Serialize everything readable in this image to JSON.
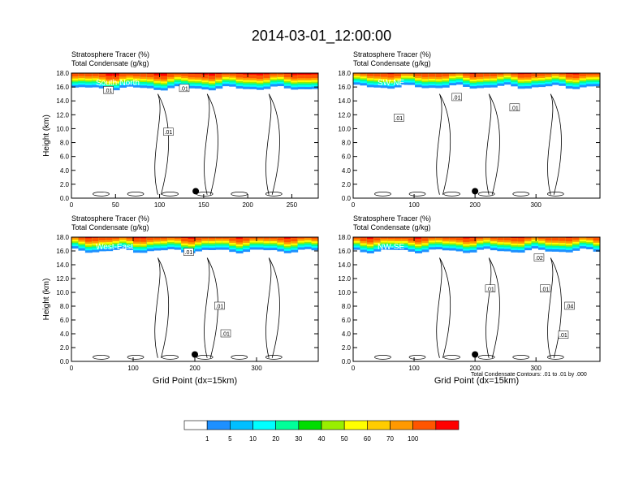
{
  "title": "2014-03-01_12:00:00",
  "panel_subtitle_1": "Stratosphere Tracer   (%)",
  "panel_subtitle_2": "Total Condensate   (g/kg)",
  "contour_note": "Total Condensate Contours: .01 to .01 by .000",
  "colorbar": {
    "colors": [
      "#ffffff",
      "#1e90ff",
      "#00bfff",
      "#00ffff",
      "#00ff99",
      "#00dd00",
      "#99ee00",
      "#ffff00",
      "#ffcc00",
      "#ff9900",
      "#ff5500",
      "#ff0000"
    ],
    "labels": [
      "1",
      "5",
      "10",
      "20",
      "30",
      "40",
      "50",
      "60",
      "70",
      "100"
    ]
  },
  "chart_data": [
    {
      "type": "heatmap",
      "region": "South-North",
      "ylabel": "Height (km)",
      "xlabel": "",
      "xlim": [
        0,
        280
      ],
      "ylim": [
        0,
        18
      ],
      "xticks": [
        "0",
        "50",
        "100",
        "150",
        "200",
        "250"
      ],
      "yticks": [
        "0.0",
        "2.0",
        "4.0",
        "6.0",
        "8.0",
        "10.0",
        "12.0",
        "14.0",
        "16.0",
        "18.0"
      ],
      "marker": {
        "x": 141,
        "y": 1.0
      },
      "contour_labels": [
        {
          "text": ".01",
          "x": 42,
          "y": 15.5
        },
        {
          "text": ".01",
          "x": 128,
          "y": 15.8
        },
        {
          "text": ".01",
          "x": 110,
          "y": 9.5
        }
      ],
      "tropopause_km": 15.8
    },
    {
      "type": "heatmap",
      "region": "SW-NE",
      "ylabel": "",
      "xlabel": "",
      "xlim": [
        0,
        405
      ],
      "ylim": [
        0,
        18
      ],
      "xticks": [
        "0",
        "100",
        "200",
        "300"
      ],
      "yticks": [
        "0.0",
        "2.0",
        "4.0",
        "6.0",
        "8.0",
        "10.0",
        "12.0",
        "14.0",
        "16.0",
        "18.0"
      ],
      "marker": {
        "x": 200,
        "y": 1.0
      },
      "contour_labels": [
        {
          "text": ".01",
          "x": 170,
          "y": 14.5
        },
        {
          "text": ".01",
          "x": 75,
          "y": 11.5
        },
        {
          "text": ".01",
          "x": 265,
          "y": 13.0
        }
      ],
      "tropopause_km": 16.0
    },
    {
      "type": "heatmap",
      "region": "West-East",
      "ylabel": "Height (km)",
      "xlabel": "Grid Point (dx=15km)",
      "xlim": [
        0,
        400
      ],
      "ylim": [
        0,
        18
      ],
      "xticks": [
        "0",
        "100",
        "200",
        "300"
      ],
      "yticks": [
        "0.0",
        "2.0",
        "4.0",
        "6.0",
        "8.0",
        "10.0",
        "12.0",
        "14.0",
        "16.0",
        "18.0"
      ],
      "marker": {
        "x": 200,
        "y": 1.0
      },
      "contour_labels": [
        {
          "text": ".01",
          "x": 190,
          "y": 15.8
        },
        {
          "text": ".01",
          "x": 240,
          "y": 8.0
        },
        {
          "text": ".01",
          "x": 250,
          "y": 4.0
        }
      ],
      "tropopause_km": 16.0
    },
    {
      "type": "heatmap",
      "region": "NW-SE",
      "ylabel": "",
      "xlabel": "Grid Point (dx=15km)",
      "xlim": [
        0,
        405
      ],
      "ylim": [
        0,
        18
      ],
      "xticks": [
        "0",
        "100",
        "200",
        "300"
      ],
      "yticks": [
        "0.0",
        "2.0",
        "4.0",
        "6.0",
        "8.0",
        "10.0",
        "12.0",
        "14.0",
        "16.0",
        "18.0"
      ],
      "marker": {
        "x": 200,
        "y": 1.0
      },
      "contour_labels": [
        {
          "text": ".02",
          "x": 305,
          "y": 15.0
        },
        {
          "text": ".01",
          "x": 225,
          "y": 10.5
        },
        {
          "text": ".01",
          "x": 315,
          "y": 10.5
        },
        {
          "text": ".04",
          "x": 355,
          "y": 8.0
        },
        {
          "text": ".01",
          "x": 345,
          "y": 3.8
        }
      ],
      "tropopause_km": 16.0
    }
  ]
}
